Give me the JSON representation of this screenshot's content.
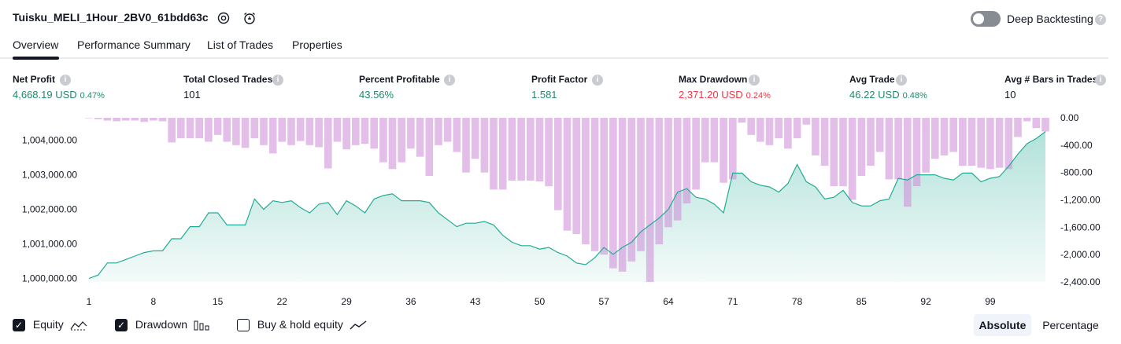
{
  "header": {
    "title": "Tuisku_MELI_1Hour_2BV0_61bdd63c",
    "settings_icon": "gear-icon",
    "alert_icon": "alarm-clock-plus-icon",
    "deep_backtesting_label": "Deep Backtesting",
    "deep_backtesting_on": false
  },
  "tabs": [
    {
      "label": "Overview",
      "active": true
    },
    {
      "label": "Performance Summary",
      "active": false
    },
    {
      "label": "List of Trades",
      "active": false
    },
    {
      "label": "Properties",
      "active": false
    }
  ],
  "metrics": [
    {
      "label": "Net Profit",
      "value": "4,668.19 USD",
      "sub": "0.47%",
      "color": "#22886d"
    },
    {
      "label": "Total Closed Trades",
      "value": "101",
      "sub": "",
      "color": "#131722"
    },
    {
      "label": "Percent Profitable",
      "value": "43.56%",
      "sub": "",
      "color": "#22886d"
    },
    {
      "label": "Profit Factor",
      "value": "1.581",
      "sub": "",
      "color": "#22886d"
    },
    {
      "label": "Max Drawdown",
      "value": "2,371.20 USD",
      "sub": "0.24%",
      "color": "#f23645"
    },
    {
      "label": "Avg Trade",
      "value": "46.22 USD",
      "sub": "0.48%",
      "color": "#22886d"
    },
    {
      "label": "Avg # Bars in Trades",
      "value": "10",
      "sub": "",
      "color": "#131722"
    }
  ],
  "chart_data": {
    "type": "line",
    "x_ticks": [
      "1",
      "8",
      "15",
      "22",
      "29",
      "36",
      "43",
      "50",
      "57",
      "64",
      "71",
      "78",
      "85",
      "92",
      "99"
    ],
    "left_axis_ticks": [
      "1,004,000.00",
      "1,003,000.00",
      "1,002,000.00",
      "1,001,000.00",
      "1,000,000.00"
    ],
    "right_axis_ticks": [
      "0.00",
      "-400.00",
      "-800.00",
      "-1,200.00",
      "-1,600.00",
      "-2,000.00",
      "-2,400.00"
    ],
    "left_ylim": [
      999900,
      1004650
    ],
    "right_ylim": [
      -2400,
      0
    ],
    "series": [
      {
        "name": "Equity",
        "type": "area",
        "axis": "left",
        "color": "#22ab94",
        "values": [
          1000000,
          1000100,
          1000450,
          1000450,
          1000550,
          1000650,
          1000750,
          1000800,
          1000800,
          1001150,
          1001150,
          1001500,
          1001500,
          1001900,
          1001900,
          1001550,
          1001550,
          1001550,
          1002300,
          1002000,
          1002250,
          1002200,
          1002250,
          1002050,
          1001900,
          1002150,
          1002200,
          1001850,
          1002250,
          1002100,
          1001900,
          1002300,
          1002400,
          1002450,
          1002250,
          1002250,
          1002250,
          1002200,
          1001900,
          1001700,
          1001500,
          1001600,
          1001600,
          1001650,
          1001550,
          1001250,
          1001050,
          1000950,
          1000950,
          1000850,
          1000900,
          1000750,
          1000650,
          1000450,
          1000400,
          1000600,
          1000900,
          1000700,
          1000900,
          1001050,
          1001350,
          1001550,
          1001750,
          1002000,
          1002500,
          1002600,
          1002350,
          1002300,
          1002150,
          1001900,
          1003050,
          1003050,
          1002800,
          1002700,
          1002650,
          1002500,
          1002750,
          1003300,
          1002800,
          1002650,
          1002300,
          1002350,
          1002550,
          1002200,
          1002100,
          1002100,
          1002250,
          1002300,
          1002900,
          1002850,
          1003000,
          1003000,
          1003000,
          1002900,
          1002850,
          1003050,
          1003050,
          1002800,
          1002900,
          1002950,
          1003250,
          1003600,
          1003900,
          1004050,
          1004250
        ]
      },
      {
        "name": "Drawdown",
        "type": "bar",
        "axis": "right",
        "color": "#ce93d8",
        "values": [
          0,
          -20,
          -40,
          -50,
          -40,
          -40,
          -60,
          -40,
          -50,
          -360,
          -300,
          -300,
          -300,
          -350,
          -250,
          -350,
          -400,
          -440,
          -300,
          -400,
          -520,
          -350,
          -400,
          -340,
          -400,
          -430,
          -740,
          -350,
          -460,
          -400,
          -380,
          -450,
          -650,
          -750,
          -650,
          -450,
          -570,
          -850,
          -400,
          -350,
          -500,
          -800,
          -600,
          -800,
          -1050,
          -1050,
          -920,
          -920,
          -920,
          -930,
          -1000,
          -1350,
          -1650,
          -1700,
          -1850,
          -1950,
          -2000,
          -2200,
          -2250,
          -2100,
          -1950,
          -2400,
          -1850,
          -1600,
          -1500,
          -1250,
          -1050,
          -650,
          -650,
          -950,
          -900,
          -70,
          -250,
          -350,
          -400,
          -300,
          -450,
          -300,
          -100,
          -550,
          -700,
          -1000,
          -1000,
          -1200,
          -850,
          -700,
          -500,
          -900,
          -900,
          -1300,
          -1000,
          -800,
          -600,
          -550,
          -500,
          -700,
          -700,
          -730,
          -750,
          -730,
          -750,
          -280,
          -50,
          -150,
          -200
        ]
      }
    ],
    "legend": [
      {
        "label": "Equity",
        "checked": true,
        "icon": "area-chart-icon"
      },
      {
        "label": "Drawdown",
        "checked": true,
        "icon": "bar-chart-icon"
      },
      {
        "label": "Buy & hold equity",
        "checked": false,
        "icon": "line-chart-icon"
      }
    ],
    "grid": false
  },
  "footer": {
    "absolute_label": "Absolute",
    "percentage_label": "Percentage",
    "mode": "Absolute"
  }
}
